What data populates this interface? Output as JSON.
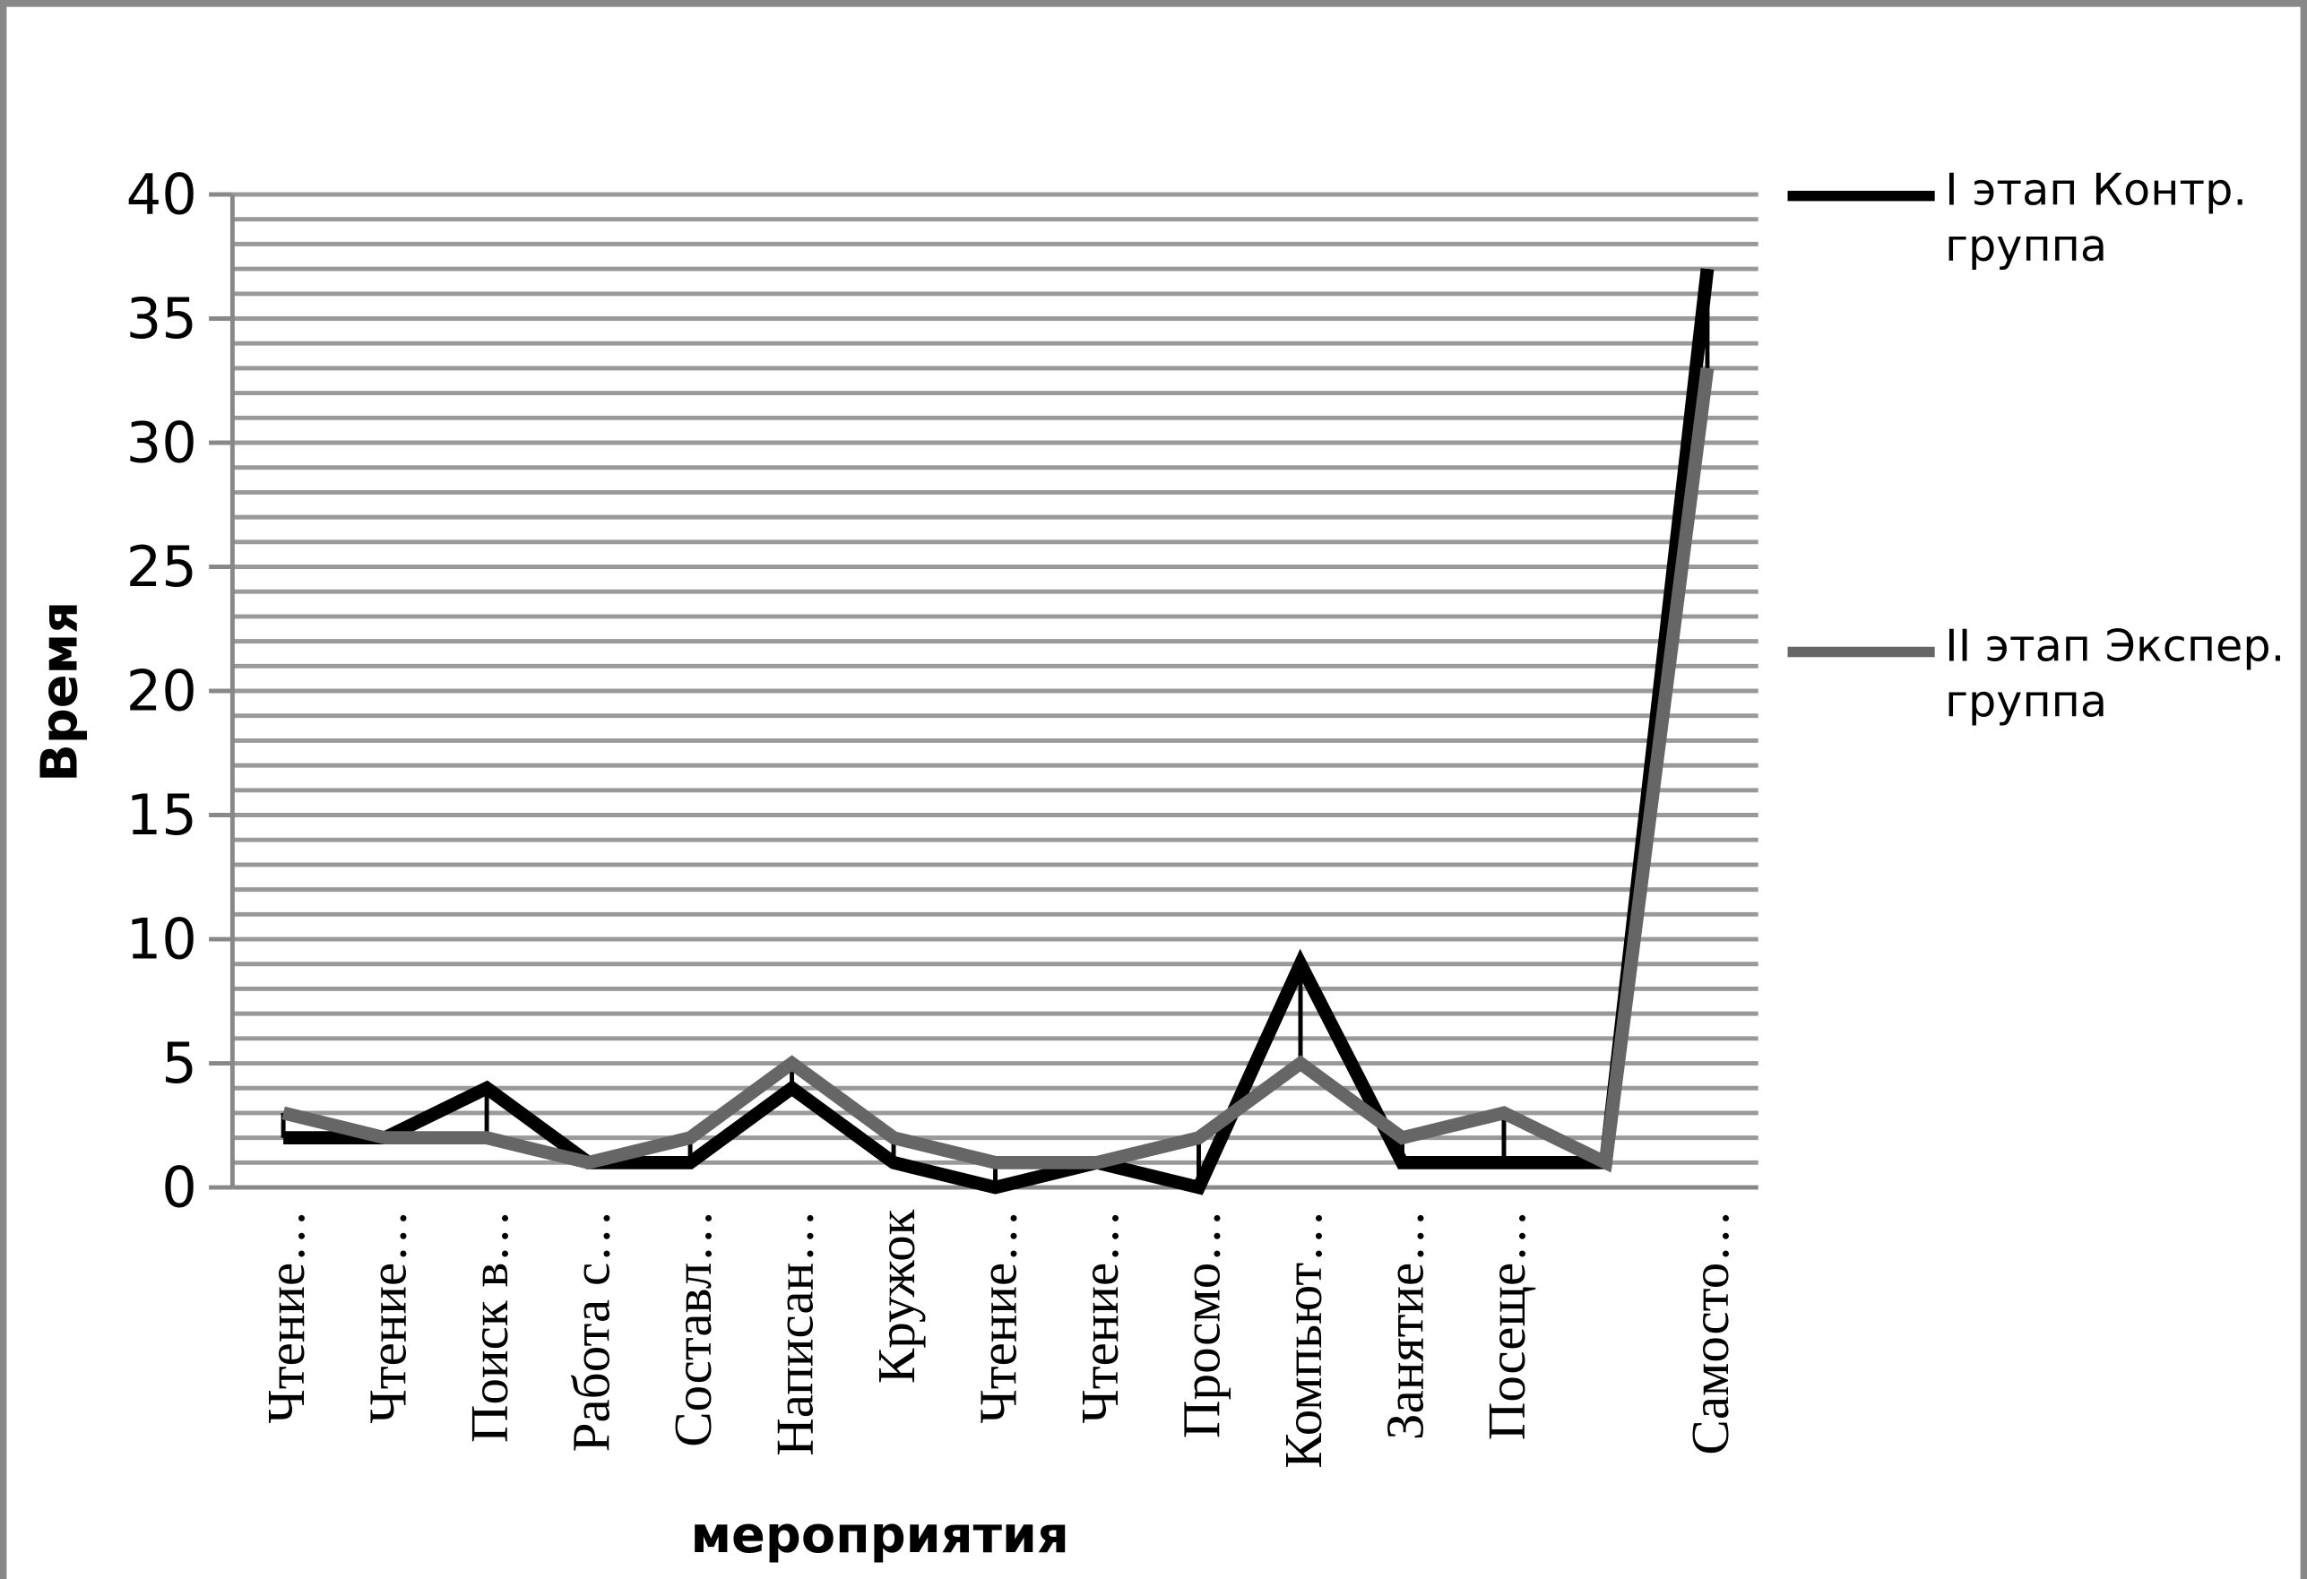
{
  "chart_data": {
    "type": "line",
    "y_label": "Время",
    "x_label": "мероприятия",
    "categories": [
      "Чтение…",
      "Чтение…",
      "Поиск в…",
      "Работа с…",
      "Составл…",
      "Написан…",
      "Кружок",
      "Чтение…",
      "Чтение…",
      "Просмо…",
      "Компьют…",
      "Занятие…",
      "Посеще…",
      null,
      "Самосто…"
    ],
    "series": [
      {
        "name": "I этап Контр. группа",
        "color": "#000000",
        "values": [
          2,
          2,
          4,
          1,
          1,
          4,
          1,
          0,
          1,
          0,
          9,
          1,
          1,
          1,
          37
        ]
      },
      {
        "name": "II этап Экспер. группа",
        "color": "#666666",
        "values": [
          3,
          2,
          2,
          1,
          2,
          5,
          2,
          1,
          1,
          2,
          5,
          2,
          3,
          1,
          33
        ]
      }
    ],
    "ylim": [
      0,
      40
    ],
    "yticks": [
      0,
      5,
      10,
      15,
      20,
      25,
      30,
      35,
      40
    ],
    "grid": true,
    "minor_grid_step": 1,
    "high_low_lines": true,
    "legend": "right"
  }
}
